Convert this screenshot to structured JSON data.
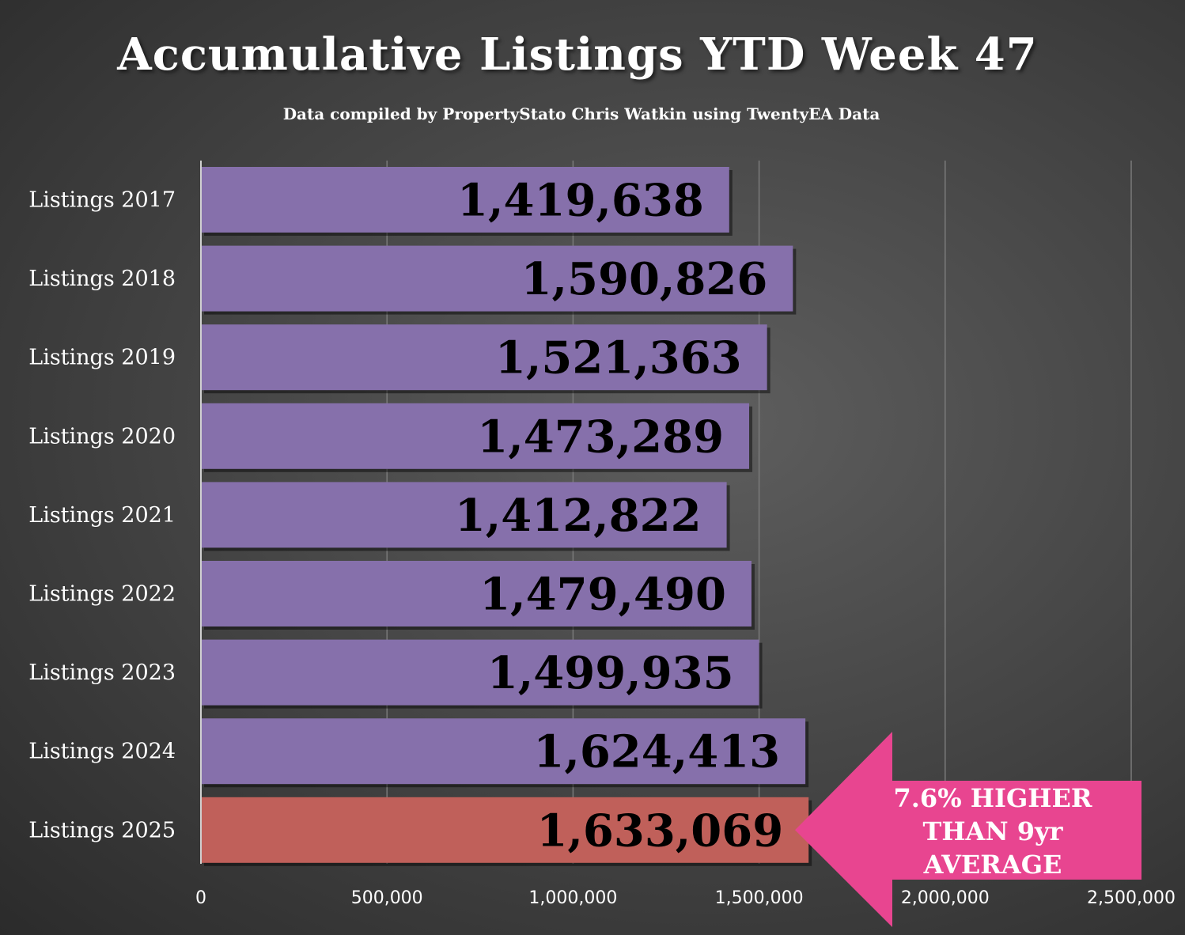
{
  "title": "Accumulative Listings YTD Week 47",
  "subtitle": "Data compiled by PropertyStato Chris Watkin using TwentyEA Data",
  "colors": {
    "bar": "#8670ab",
    "highlight_bar": "#c0605a",
    "callout": "#e84590",
    "gridline": "#7a7a7a",
    "axis": "#d0d0d0"
  },
  "chart_data": {
    "type": "bar",
    "orientation": "horizontal",
    "categories": [
      "Listings 2017",
      "Listings 2018",
      "Listings 2019",
      "Listings 2020",
      "Listings 2021",
      "Listings 2022",
      "Listings 2023",
      "Listings 2024",
      "Listings 2025"
    ],
    "values": [
      1419638,
      1590826,
      1521363,
      1473289,
      1412822,
      1479490,
      1499935,
      1624413,
      1633069
    ],
    "value_labels": [
      "1,419,638",
      "1,590,826",
      "1,521,363",
      "1,473,289",
      "1,412,822",
      "1,479,490",
      "1,499,935",
      "1,624,413",
      "1,633,069"
    ],
    "highlight_index": 8,
    "xlim": [
      0,
      2500000
    ],
    "x_ticks": [
      0,
      500000,
      1000000,
      1500000,
      2000000,
      2500000
    ],
    "x_tick_labels": [
      "0",
      "500,000",
      "1,000,000",
      "1,500,000",
      "2,000,000",
      "2,500,000"
    ],
    "grid": "vertical",
    "annotation": {
      "lines": [
        "7.6% HIGHER",
        "THAN 9yr",
        "AVERAGE"
      ],
      "points_to": "Listings 2025"
    }
  }
}
